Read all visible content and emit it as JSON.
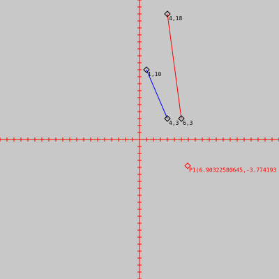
{
  "colors": {
    "background": "#c8c8c8",
    "axes": "#ff0000",
    "segment_red": "#ff0000",
    "segment_blue": "#0000ff",
    "point_marker": "#000000",
    "label_text": "#000000",
    "selected_point": "#ff0000"
  },
  "points": [
    {
      "id": "a",
      "label": "1,10",
      "x": 1,
      "y": 10
    },
    {
      "id": "b",
      "label": "4,3",
      "x": 4,
      "y": 3
    },
    {
      "id": "c",
      "label": "4,18",
      "x": 4,
      "y": 18
    },
    {
      "id": "d",
      "label": "6,3",
      "x": 6,
      "y": 3
    }
  ],
  "segments": [
    {
      "from": "a",
      "to": "b",
      "color": "#0000ff"
    },
    {
      "from": "c",
      "to": "d",
      "color": "#ff0000"
    }
  ],
  "probe_point": {
    "label": "P1(6.90322580645,-3.774193",
    "x": 6.90322580645,
    "y": -3.774193
  }
}
